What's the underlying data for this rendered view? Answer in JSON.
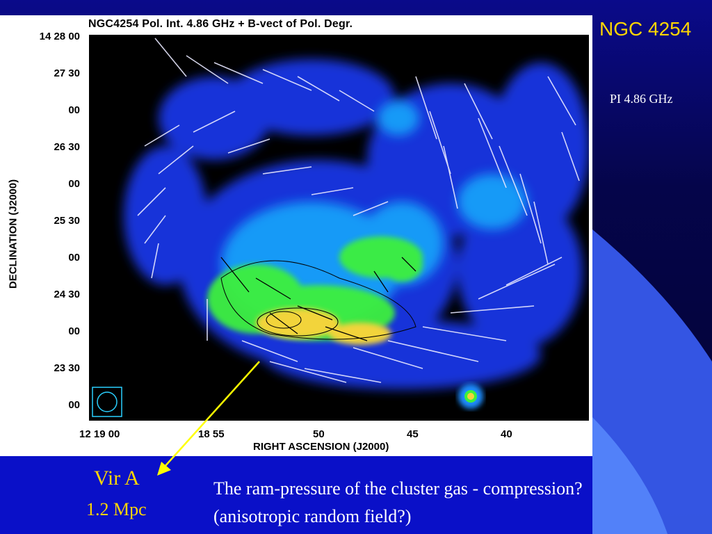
{
  "slide": {
    "title": "NGC 4254",
    "subtitle": "PI  4.86 GHz",
    "annotation_name": "Vir A",
    "annotation_distance": "1.2 Mpc",
    "caption_line1": "The ram-pressure of the cluster gas - compression?",
    "caption_line2": "(anisotropic random field?)",
    "colors": {
      "title": "#ffd600",
      "arrow": "#ffff00",
      "background": "#0a0a8a"
    }
  },
  "figure": {
    "title": "NGC4254  Pol. Int. 4.86 GHz + B-vect of Pol. Degr.",
    "ylabel": "DECLINATION (J2000)",
    "xlabel": "RIGHT ASCENSION (J2000)",
    "yticks": [
      "14 28 00",
      "27 30",
      "00",
      "26 30",
      "00",
      "25 30",
      "00",
      "24 30",
      "00",
      "23 30",
      "00"
    ],
    "xticks": [
      "12 19 00",
      "18 55",
      "50",
      "45",
      "40"
    ]
  }
}
